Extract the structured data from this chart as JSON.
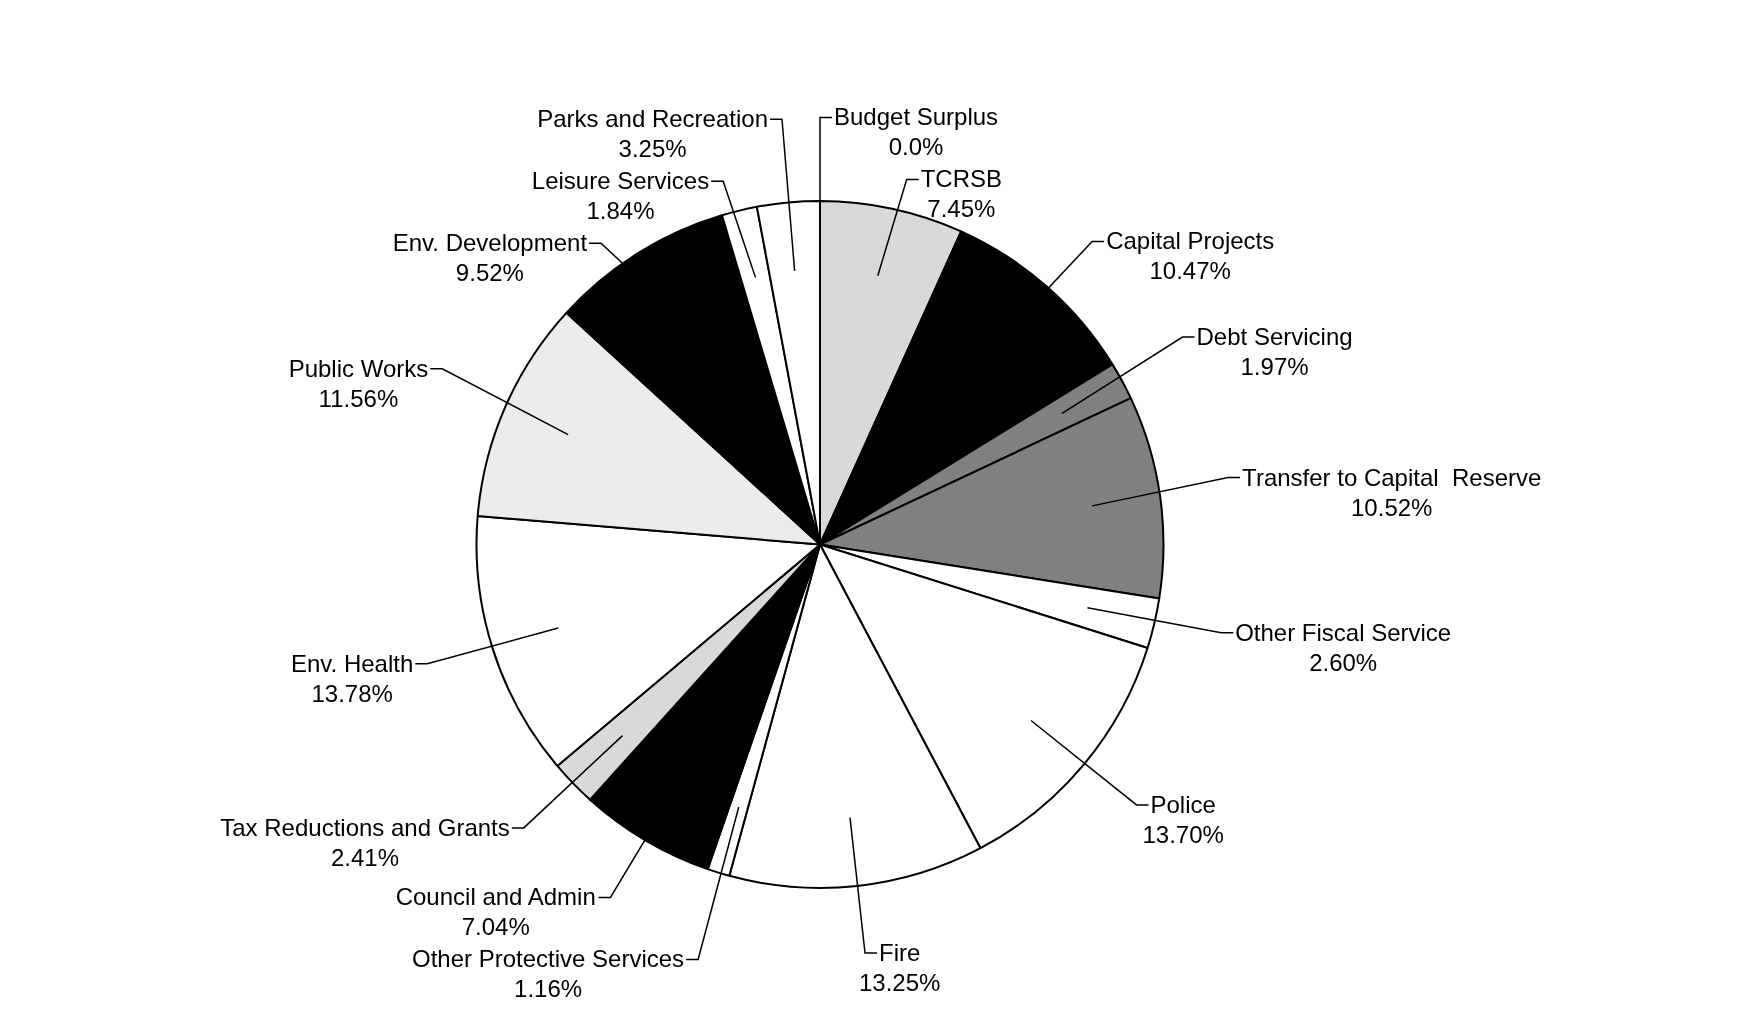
{
  "chart_data": {
    "type": "pie",
    "categories": [
      "Budget Surplus",
      "TCRSB",
      "Capital Projects",
      "Debt Servicing",
      "Transfer to Capital  Reserve",
      "Other Fiscal Service",
      "Police",
      "Fire",
      "Other Protective Services",
      "Council and Admin",
      "Tax Reductions and Grants",
      "Env. Health",
      "Public Works",
      "Env. Development",
      "Leisure Services",
      "Parks and Recreation"
    ],
    "values": [
      0.0,
      7.45,
      10.47,
      1.97,
      10.52,
      2.6,
      13.7,
      13.25,
      1.16,
      7.04,
      2.41,
      13.78,
      11.56,
      9.52,
      1.84,
      3.25
    ],
    "value_labels": [
      "0.0%",
      "7.45%",
      "10.47%",
      "1.97%",
      "10.52%",
      "2.60%",
      "13.70%",
      "13.25%",
      "1.16%",
      "7.04%",
      "2.41%",
      "13.78%",
      "11.56%",
      "9.52%",
      "1.84%",
      "3.25%"
    ],
    "colors": [
      "#ffffff",
      "#d9d9d9",
      "#000000",
      "#808080",
      "#808080",
      "#ffffff",
      "#ffffff",
      "#ffffff",
      "#ffffff",
      "#000000",
      "#d9d9d9",
      "#ffffff",
      "#ececec",
      "#000000",
      "#ffffff",
      "#ffffff"
    ],
    "legend": false
  }
}
